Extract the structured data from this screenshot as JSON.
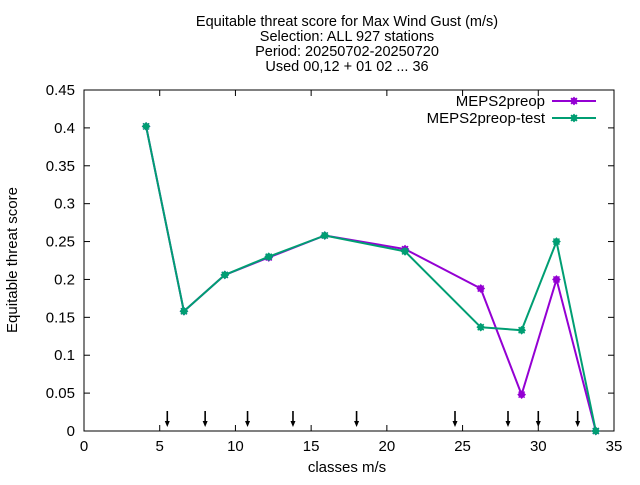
{
  "chart_data": {
    "type": "line",
    "title_lines": [
      "Equitable threat score  for Max Wind Gust (m/s)",
      "Selection: ALL    927 stations",
      "Period: 20250702-20250720",
      "Used 00,12 + 01 02 ... 36"
    ],
    "xlabel": "classes m/s",
    "ylabel": "Equitable threat score",
    "xlim": [
      0,
      35
    ],
    "ylim": [
      0,
      0.45
    ],
    "xticks": [
      0,
      5,
      10,
      15,
      20,
      25,
      30,
      35
    ],
    "xtick_labels": [
      "0",
      "5",
      "10",
      "15",
      "20",
      "25",
      "30",
      "35"
    ],
    "yticks": [
      0,
      0.05,
      0.1,
      0.15,
      0.2,
      0.25,
      0.3,
      0.35,
      0.4,
      0.45
    ],
    "ytick_labels": [
      "0",
      "0.05",
      "0.1",
      "0.15",
      "0.2",
      "0.25",
      "0.3",
      "0.35",
      "0.4",
      "0.45"
    ],
    "grid": false,
    "legend_position": "top-right",
    "class_markers_x": [
      5.5,
      8,
      10.8,
      13.8,
      18,
      24.5,
      28,
      30,
      32.6
    ],
    "series": [
      {
        "name": "MEPS2preop",
        "color": "#9400d3",
        "x": [
          4.1,
          6.6,
          9.3,
          12.2,
          15.9,
          21.2,
          26.2,
          28.9,
          31.2,
          33.8
        ],
        "y": [
          0.402,
          0.158,
          0.206,
          0.229,
          0.258,
          0.24,
          0.188,
          0.048,
          0.2,
          0.0
        ]
      },
      {
        "name": "MEPS2preop-test",
        "color": "#009e73",
        "x": [
          4.1,
          6.6,
          9.3,
          12.2,
          15.9,
          21.2,
          26.2,
          28.9,
          31.2,
          33.8
        ],
        "y": [
          0.402,
          0.158,
          0.206,
          0.23,
          0.258,
          0.237,
          0.137,
          0.133,
          0.25,
          0.0
        ]
      }
    ]
  }
}
